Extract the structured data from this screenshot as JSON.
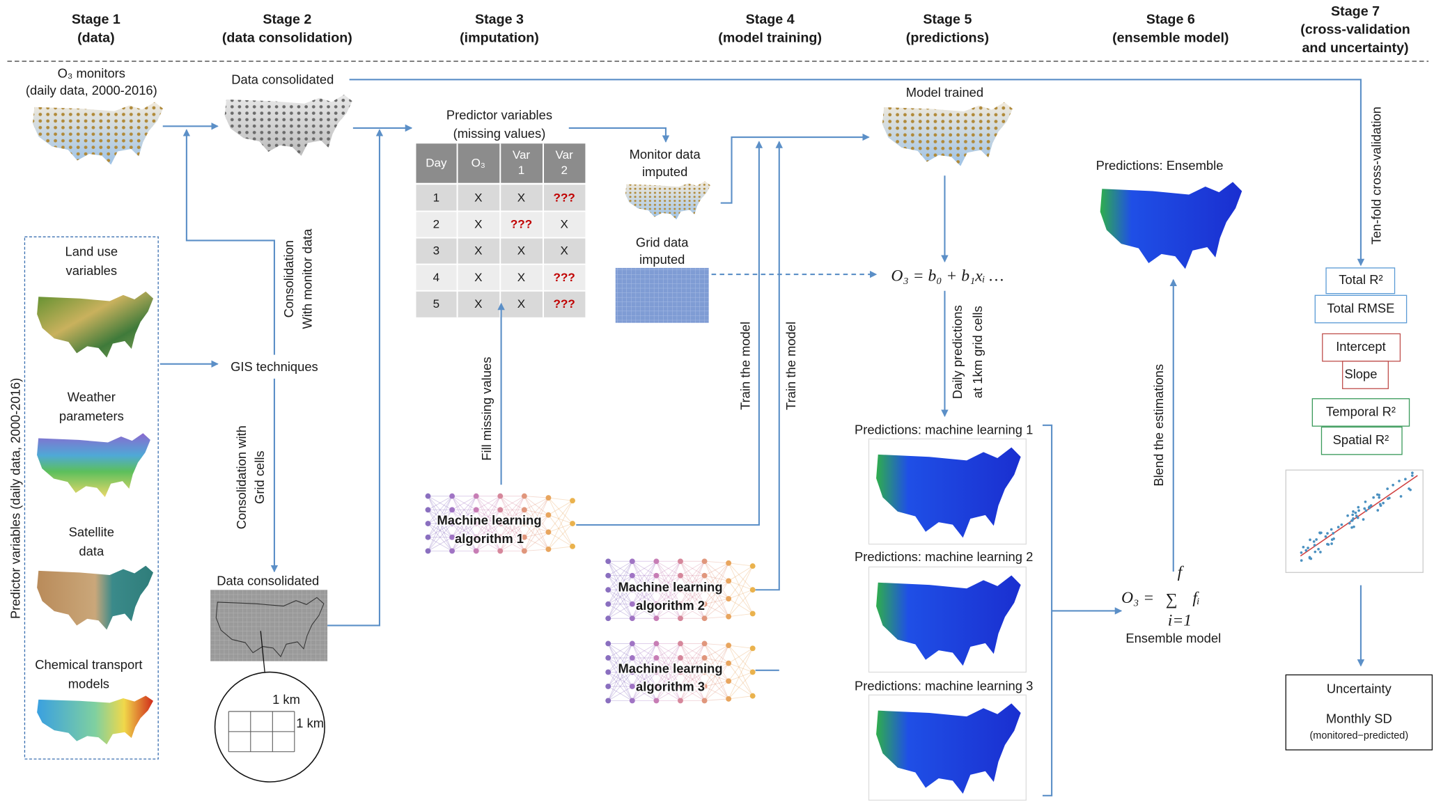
{
  "stages": [
    {
      "lines": [
        "Stage 1",
        "(data)"
      ]
    },
    {
      "lines": [
        "Stage 2",
        "(data consolidation)"
      ]
    },
    {
      "lines": [
        "Stage 3",
        "(imputation)"
      ]
    },
    {
      "lines": [
        "Stage 4",
        "(model training)"
      ]
    },
    {
      "lines": [
        "Stage 5",
        "(predictions)"
      ]
    },
    {
      "lines": [
        "Stage 6",
        "(ensemble model)"
      ]
    },
    {
      "lines": [
        "Stage 7",
        "(cross-validation",
        "and uncertainty)"
      ]
    }
  ],
  "stage1": {
    "monitors": [
      "O₃ monitors",
      "(daily data, 2000-2016)"
    ],
    "predictor_group": "Predictor variables (daily data, 2000-2016)",
    "inputs": [
      [
        "Land use",
        "variables"
      ],
      [
        "Weather",
        "parameters"
      ],
      [
        "Satellite",
        "data"
      ],
      [
        "Chemical transport",
        "models"
      ]
    ]
  },
  "stage2": {
    "consolidated_top": "Data consolidated",
    "with_monitor": [
      "Consolidation",
      "With monitor data"
    ],
    "gis": "GIS techniques",
    "with_grid": [
      "Consolidation with",
      "Grid cells"
    ],
    "consolidated_bottom": "Data consolidated",
    "cell_width": "1 km",
    "cell_height": "1 km"
  },
  "stage3": {
    "predictors": [
      "Predictor variables",
      "(missing values)"
    ],
    "table": {
      "header": [
        [
          "Day"
        ],
        [
          "O₃"
        ],
        [
          "Var",
          "1"
        ],
        [
          "Var",
          "2"
        ]
      ],
      "rows": [
        [
          "1",
          "X",
          "X",
          "???"
        ],
        [
          "2",
          "X",
          "???",
          "X"
        ],
        [
          "3",
          "X",
          "X",
          "X"
        ],
        [
          "4",
          "X",
          "X",
          "???"
        ],
        [
          "5",
          "X",
          "X",
          "???"
        ]
      ]
    },
    "fill": "Fill missing values",
    "algorithm": [
      "Machine learning",
      "algorithm 1"
    ]
  },
  "stage4": {
    "monitor_imputed": [
      "Monitor data",
      "imputed"
    ],
    "grid_imputed": [
      "Grid data",
      "imputed"
    ],
    "train": [
      "Train the model",
      "Train the model"
    ],
    "algorithms": [
      [
        "Machine learning",
        "algorithm 2"
      ],
      [
        "Machine learning",
        "algorithm 3"
      ]
    ]
  },
  "stage5": {
    "model_trained": "Model trained",
    "formula": "O₃ = b₀ + b₁xᵢ …",
    "daily": [
      "Daily predictions",
      "at 1km grid cells"
    ],
    "predictions": [
      "Predictions: machine learning 1",
      "Predictions: machine learning 2",
      "Predictions: machine learning 3"
    ]
  },
  "stage6": {
    "ensemble_map": "Predictions: Ensemble",
    "blend": "Blend the estimations",
    "formula": {
      "lhs": "O₃ =",
      "sum": "∑",
      "upper": "f",
      "lower": "i=1",
      "term": "fᵢ"
    },
    "label": "Ensemble model"
  },
  "stage7": {
    "cv": "Ten-fold cross-validation",
    "metrics": [
      "Total R²",
      "Total RMSE",
      "Intercept",
      "Slope",
      "Temporal R²",
      "Spatial R²"
    ],
    "uncertainty": [
      "Uncertainty",
      "Monthly SD",
      "(monitored−predicted)"
    ]
  }
}
